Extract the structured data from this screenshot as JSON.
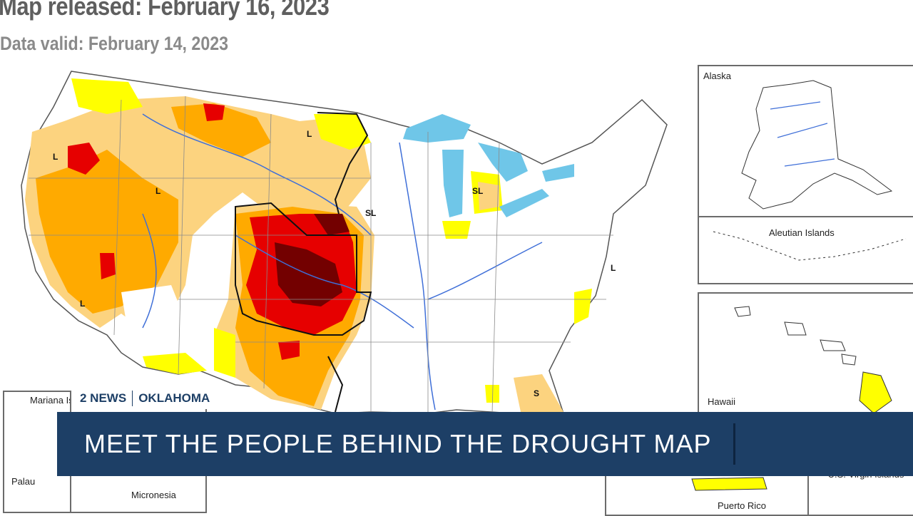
{
  "header": {
    "released": "Map released: February 16, 2023",
    "valid": "Data valid: February 14, 2023"
  },
  "map_labels": {
    "intensity_marks": [
      "L",
      "L",
      "L",
      "L",
      "SL",
      "SL",
      "L",
      "S"
    ]
  },
  "insets": {
    "alaska": "Alaska",
    "aleutian": "Aleutian Islands",
    "hawaii": "Hawaii",
    "mariana": "Mariana Islands",
    "palau": "Palau",
    "micronesia": "Micronesia",
    "puerto_rico": "Puerto Rico",
    "virgin_islands": "U.S. Virgin Islands"
  },
  "brand": {
    "station": "2 NEWS",
    "state": "OKLAHOMA"
  },
  "headline": "MEET THE PEOPLE BEHIND THE DROUGHT MAP",
  "colors": {
    "abnormally_dry": "#ffff00",
    "moderate": "#fcd37f",
    "severe": "#ffaa00",
    "extreme": "#e60000",
    "exceptional": "#730000",
    "water": "#6fc6e8",
    "banner": "#1d3f66"
  }
}
